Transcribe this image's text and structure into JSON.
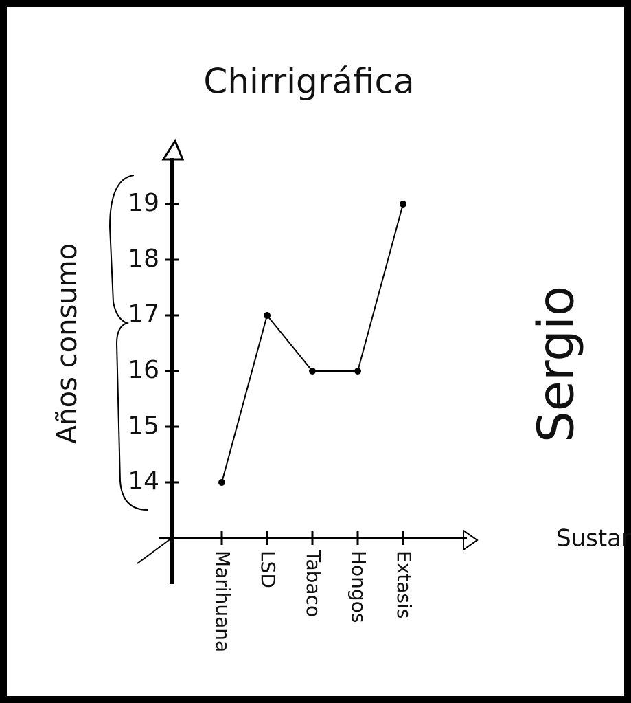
{
  "chart_data": {
    "type": "line",
    "title": "Chirrigráfica",
    "y_label": "Años consumo",
    "x_label": "Sustancia",
    "annotation": "Sergio",
    "categories": [
      "Marihuana",
      "LSD",
      "Tabaco",
      "Hongos",
      "Extasis"
    ],
    "values": [
      14,
      17,
      16,
      16,
      19
    ],
    "color": "#000000",
    "ylim": [
      13,
      20
    ],
    "yticks": [
      14,
      15,
      16,
      17,
      18,
      19
    ]
  }
}
